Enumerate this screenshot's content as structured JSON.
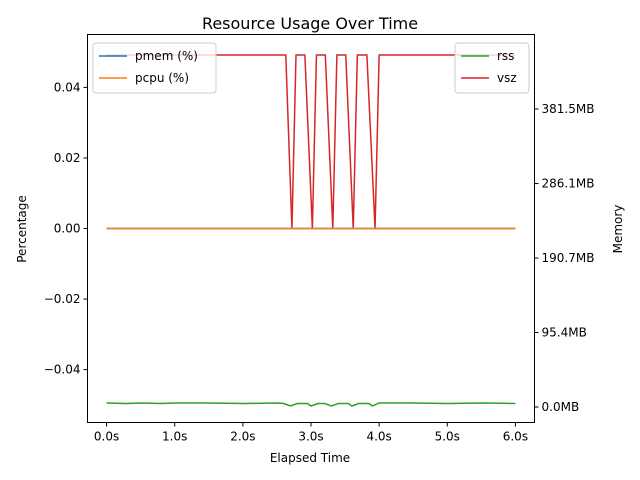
{
  "chart_data": {
    "type": "line",
    "title": "Resource Usage Over Time",
    "xlabel": "Elapsed Time",
    "ylabel_left": "Percentage",
    "ylabel_right": "Memory",
    "xlim": [
      -0.28,
      6.28
    ],
    "ylim_left": [
      -0.055,
      0.055
    ],
    "ylim_right_mb": [
      -23.5,
      0
    ],
    "x_ticks": [
      {
        "value": 0,
        "label": "0.0s"
      },
      {
        "value": 1,
        "label": "1.0s"
      },
      {
        "value": 2,
        "label": "2.0s"
      },
      {
        "value": 3,
        "label": "3.0s"
      },
      {
        "value": 4,
        "label": "4.0s"
      },
      {
        "value": 5,
        "label": "5.0s"
      },
      {
        "value": 6,
        "label": "6.0s"
      }
    ],
    "y_left_ticks": [
      {
        "value": 0.04,
        "label": "0.04"
      },
      {
        "value": 0.02,
        "label": "0.02"
      },
      {
        "value": 0.0,
        "label": "0.00"
      },
      {
        "value": -0.02,
        "label": "−0.02"
      },
      {
        "value": -0.04,
        "label": "−0.04"
      }
    ],
    "y_right_ticks": [
      {
        "value": 0.0,
        "label": "0.0MB"
      },
      {
        "value": 95.4,
        "label": "95.4MB"
      },
      {
        "value": 190.7,
        "label": "190.7MB"
      },
      {
        "value": 286.1,
        "label": "286.1MB"
      },
      {
        "value": 381.5,
        "label": "381.5MB"
      }
    ],
    "series_left": [
      {
        "name": "pmem (%)",
        "color": "#1f77b4",
        "x": [
          0,
          6
        ],
        "y": [
          0.0,
          0.0
        ]
      },
      {
        "name": "pcpu (%)",
        "color": "#ff7f0e",
        "x": [
          0,
          6
        ],
        "y": [
          0.0,
          0.0
        ]
      }
    ],
    "series_right": [
      {
        "name": "rss",
        "color": "#2ca02c",
        "x": [
          0,
          0.3,
          0.5,
          0.8,
          1.0,
          1.5,
          2.0,
          2.5,
          2.6,
          2.7,
          2.8,
          2.95,
          3.0,
          3.1,
          3.2,
          3.3,
          3.4,
          3.55,
          3.6,
          3.7,
          3.85,
          3.9,
          4.0,
          4.5,
          5.0,
          5.5,
          6.0
        ],
        "y": [
          5.0,
          4.5,
          5.0,
          4.5,
          5.0,
          5.0,
          4.5,
          5.0,
          4.5,
          0.0,
          4.5,
          4.5,
          1.5,
          4.5,
          4.5,
          0.5,
          4.5,
          4.5,
          0.0,
          4.5,
          4.5,
          0.0,
          5.0,
          5.0,
          4.5,
          5.0,
          4.5
        ]
      },
      {
        "name": "vsz",
        "color": "#d62728",
        "x": [
          0,
          2.63,
          2.72,
          2.78,
          2.91,
          3.02,
          3.08,
          3.21,
          3.32,
          3.38,
          3.51,
          3.62,
          3.68,
          3.82,
          3.94,
          4.0,
          6.0
        ],
        "y": [
          451,
          451,
          0,
          451,
          451,
          0,
          451,
          451,
          0,
          451,
          451,
          0,
          451,
          451,
          0,
          451,
          451
        ]
      }
    ],
    "legend_left_placement": "upper-left",
    "legend_right_placement": "upper-right",
    "grid": false
  }
}
